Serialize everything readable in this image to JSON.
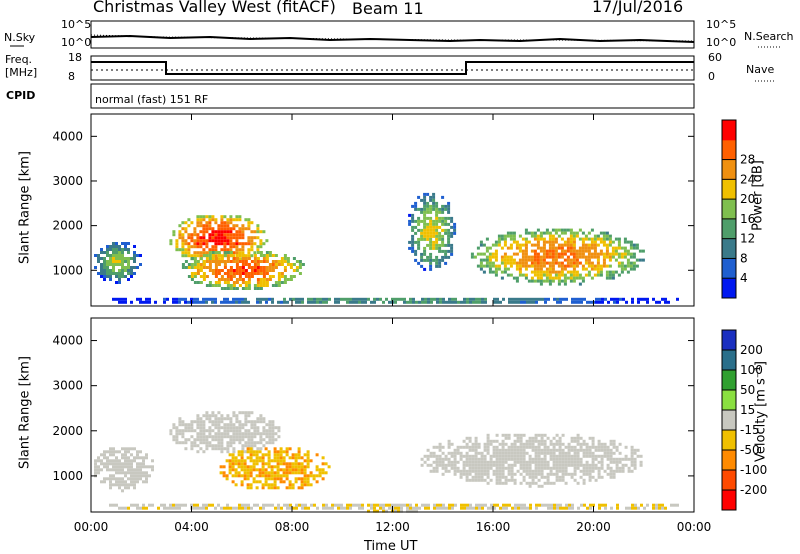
{
  "header": {
    "station": "Christmas Valley West (fitACF)",
    "beam": "Beam 11",
    "date": "17/Jul/2016"
  },
  "noise_panel": {
    "left_label": "N.Sky",
    "right_label": "N.Search",
    "left_ticks": [
      "10^5",
      "10^0"
    ],
    "right_ticks": [
      "10^5",
      "10^0"
    ]
  },
  "freq_panel": {
    "left_label_1": "Freq.",
    "left_label_2": "[MHz]",
    "right_label": "Nave",
    "left_ticks": [
      "18",
      "8"
    ],
    "right_ticks": [
      "60",
      "0"
    ]
  },
  "cpid_panel": {
    "label": "CPID",
    "text": "normal (fast) 151 RF"
  },
  "colors": {
    "power_scale": [
      "#0018f0",
      "#1f5fd0",
      "#3a7a8a",
      "#4f9e6a",
      "#7fbf4f",
      "#f0c000",
      "#f09010",
      "#ff6000",
      "#ff0000"
    ],
    "velocity_scale": [
      "#ff0000",
      "#ff4a00",
      "#ff8a00",
      "#f0c000",
      "#c8c8c0",
      "#8adf40",
      "#30a030",
      "#2a6f8a",
      "#1a2fc0"
    ]
  },
  "chart_data": [
    {
      "type": "heatmap",
      "title": "",
      "quantity": "Power",
      "xlabel": "",
      "ylabel": "Slant Range [km]",
      "x_ticks": [
        "00:00",
        "04:00",
        "08:00",
        "12:00",
        "16:00",
        "20:00",
        "00:00"
      ],
      "y_ticks": [
        "1000",
        "2000",
        "3000",
        "4000"
      ],
      "ylim": [
        200,
        4500
      ],
      "colorbar": {
        "label": "Power [dB]",
        "ticks": [
          "4",
          "8",
          "12",
          "16",
          "20",
          "24",
          "28"
        ],
        "range": [
          0,
          30
        ]
      },
      "regions": [
        {
          "t": [
            0.0,
            2.0
          ],
          "r": [
            750,
            1700
          ],
          "v": 16
        },
        {
          "t": [
            3.0,
            7.0
          ],
          "r": [
            1200,
            2300
          ],
          "v": 28
        },
        {
          "t": [
            3.5,
            8.5
          ],
          "r": [
            600,
            1500
          ],
          "v": 26
        },
        {
          "t": [
            12.5,
            14.5
          ],
          "r": [
            1000,
            2800
          ],
          "v": 18
        },
        {
          "t": [
            15.0,
            22.0
          ],
          "r": [
            700,
            2000
          ],
          "v": 24
        },
        {
          "t": [
            0.0,
            24.0
          ],
          "r": [
            250,
            450
          ],
          "v": 12
        }
      ]
    },
    {
      "type": "heatmap",
      "title": "",
      "quantity": "Velocity",
      "xlabel": "Time UT",
      "ylabel": "Slant Range [km]",
      "x_ticks": [
        "00:00",
        "04:00",
        "08:00",
        "12:00",
        "16:00",
        "20:00",
        "00:00"
      ],
      "y_ticks": [
        "1000",
        "2000",
        "3000",
        "4000"
      ],
      "ylim": [
        200,
        4500
      ],
      "colorbar": {
        "label": "Velocity [m s⁻¹]",
        "ticks": [
          "200",
          "100",
          "50",
          "15",
          "-15",
          "-50",
          "-100",
          "-200"
        ],
        "range": [
          -250,
          250
        ]
      },
      "regions": [
        {
          "t": [
            0.0,
            2.5
          ],
          "r": [
            700,
            1700
          ],
          "v": 0
        },
        {
          "t": [
            3.0,
            7.5
          ],
          "r": [
            1500,
            2500
          ],
          "v": 0
        },
        {
          "t": [
            5.0,
            9.5
          ],
          "r": [
            700,
            1700
          ],
          "v": -70
        },
        {
          "t": [
            13.0,
            22.0
          ],
          "r": [
            800,
            2000
          ],
          "v": 0
        },
        {
          "t": [
            0.0,
            24.0
          ],
          "r": [
            250,
            450
          ],
          "v": -20
        }
      ]
    }
  ]
}
